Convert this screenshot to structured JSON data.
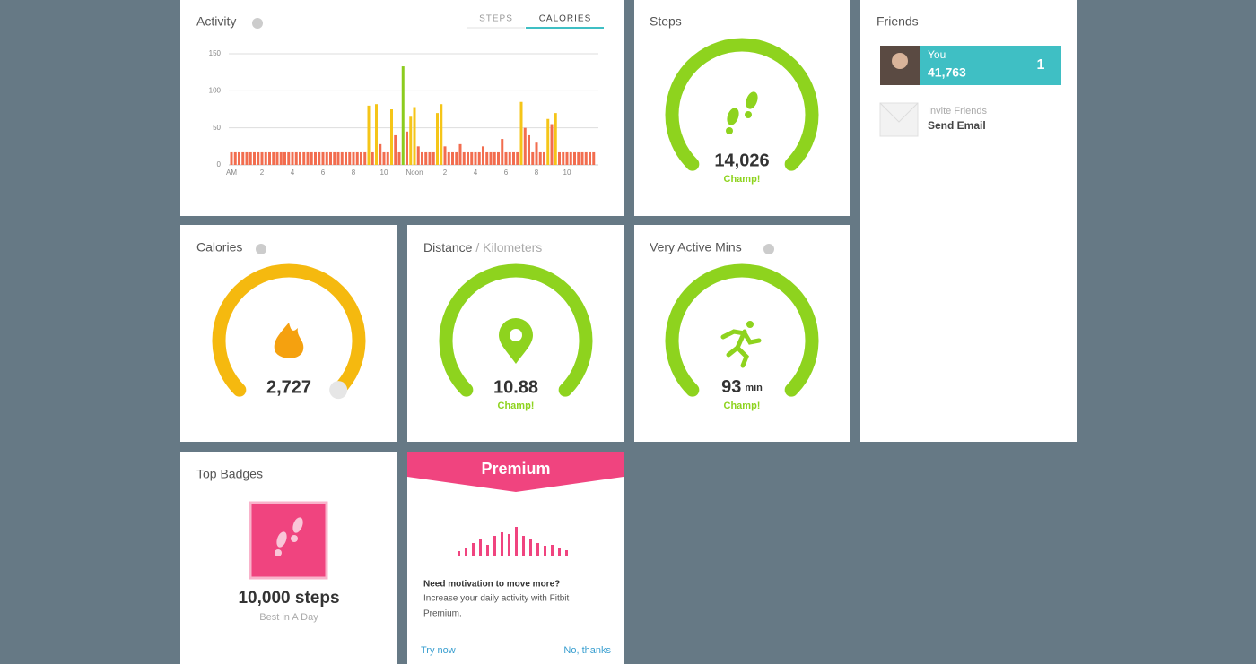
{
  "activity": {
    "title": "Activity",
    "tabs": [
      "STEPS",
      "CALORIES"
    ],
    "chart": {
      "type": "bar",
      "values": [
        17,
        17,
        17,
        17,
        17,
        17,
        17,
        17,
        17,
        17,
        17,
        17,
        17,
        17,
        17,
        17,
        17,
        17,
        17,
        17,
        17,
        17,
        17,
        17,
        17,
        17,
        17,
        17,
        17,
        17,
        17,
        17,
        17,
        17,
        17,
        17,
        80,
        17,
        82,
        28,
        17,
        17,
        75,
        40,
        17,
        133,
        45,
        65,
        78,
        25,
        17,
        17,
        17,
        17,
        70,
        82,
        25,
        17,
        17,
        17,
        28,
        17,
        17,
        17,
        17,
        17,
        25,
        17,
        17,
        17,
        17,
        35,
        17,
        17,
        17,
        17,
        85,
        50,
        40,
        17,
        30,
        17,
        17,
        62,
        55,
        70,
        17,
        17,
        17,
        17,
        17,
        17,
        17,
        17,
        17,
        17
      ],
      "colors": [
        "#f26d4f",
        "#f26d4f",
        "#f26d4f",
        "#f26d4f",
        "#f26d4f",
        "#f26d4f",
        "#f26d4f",
        "#f26d4f",
        "#f26d4f",
        "#f26d4f",
        "#f26d4f",
        "#f26d4f",
        "#f26d4f",
        "#f26d4f",
        "#f26d4f",
        "#f26d4f",
        "#f26d4f",
        "#f26d4f",
        "#f26d4f",
        "#f26d4f",
        "#f26d4f",
        "#f26d4f",
        "#f26d4f",
        "#f26d4f",
        "#f26d4f",
        "#f26d4f",
        "#f26d4f",
        "#f26d4f",
        "#f26d4f",
        "#f26d4f",
        "#f26d4f",
        "#f26d4f",
        "#f26d4f",
        "#f26d4f",
        "#f26d4f",
        "#f26d4f",
        "#f5c518",
        "#f26d4f",
        "#f5c518",
        "#f26d4f",
        "#f26d4f",
        "#f26d4f",
        "#f5c518",
        "#f26d4f",
        "#f26d4f",
        "#8ccc1e",
        "#f26d4f",
        "#f5c518",
        "#f5c518",
        "#f26d4f",
        "#f26d4f",
        "#f26d4f",
        "#f26d4f",
        "#f26d4f",
        "#f5c518",
        "#f5c518",
        "#f26d4f",
        "#f26d4f",
        "#f26d4f",
        "#f26d4f",
        "#f26d4f",
        "#f26d4f",
        "#f26d4f",
        "#f26d4f",
        "#f26d4f",
        "#f26d4f",
        "#f26d4f",
        "#f26d4f",
        "#f26d4f",
        "#f26d4f",
        "#f26d4f",
        "#f26d4f",
        "#f26d4f",
        "#f26d4f",
        "#f26d4f",
        "#f26d4f",
        "#f5c518",
        "#f26d4f",
        "#f26d4f",
        "#f26d4f",
        "#f26d4f",
        "#f26d4f",
        "#f26d4f",
        "#f5c518",
        "#f26d4f",
        "#f5c518",
        "#f26d4f",
        "#f26d4f",
        "#f26d4f",
        "#f26d4f",
        "#f26d4f",
        "#f26d4f",
        "#f26d4f",
        "#f26d4f",
        "#f26d4f",
        "#f26d4f"
      ],
      "xtick_labels": [
        "AM",
        "2",
        "4",
        "6",
        "8",
        "10",
        "Noon",
        "2",
        "4",
        "6",
        "8",
        "10"
      ],
      "ylim": [
        0,
        150
      ],
      "yticks": [
        0,
        50,
        100,
        150
      ],
      "grid": true
    }
  },
  "steps": {
    "title": "Steps",
    "value": "14,026",
    "status": "Champ!"
  },
  "friends": {
    "title": "Friends",
    "you": {
      "name": "You",
      "steps": "41,763",
      "rank": "1"
    },
    "invite": {
      "label": "Invite Friends",
      "action": "Send Email"
    }
  },
  "calories": {
    "title": "Calories",
    "value": "2,727"
  },
  "distance": {
    "title": "Distance",
    "unit": " / Kilometers",
    "value": "10.88",
    "status": "Champ!"
  },
  "active": {
    "title": "Very Active Mins",
    "value": "93",
    "unit": "min",
    "status": "Champ!"
  },
  "badges": {
    "title": "Top Badges",
    "badge": "10,000 steps",
    "caption": "Best in A Day"
  },
  "premium": {
    "title": "Premium",
    "heading": "Need motivation to move more?",
    "body": [
      "Increase your daily activity with Fitbit",
      "Premium."
    ],
    "try": "Try now",
    "decline": "No, thanks"
  }
}
